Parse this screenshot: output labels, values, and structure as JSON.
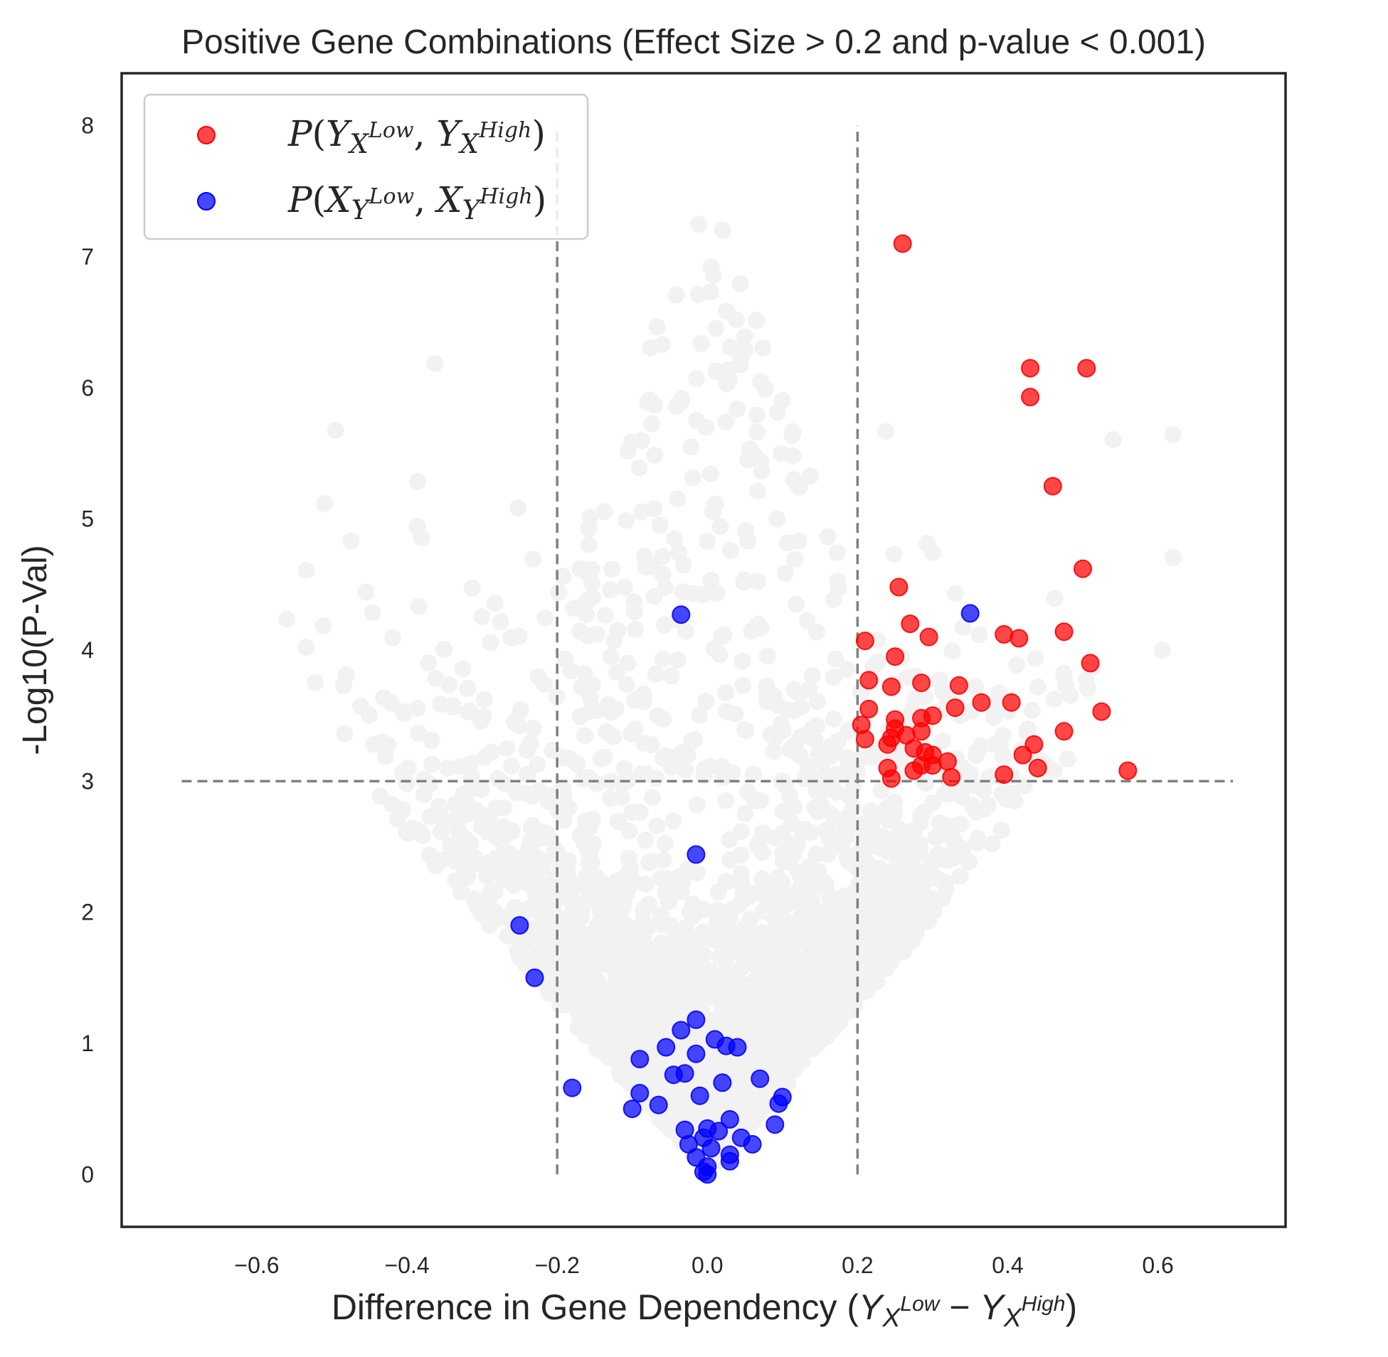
{
  "chart_data": {
    "type": "scatter",
    "title": "Positive Gene Combinations (Effect Size > 0.2 and p-value < 0.001)",
    "xlabel": "Difference in Gene Dependency  (Y_{X^{Low}} − Y_{X^{High}})",
    "ylabel": "-Log10(P-Val)",
    "xlim": [
      -0.78,
      0.77
    ],
    "ylim": [
      -0.4,
      8.4
    ],
    "xticks": [
      "−0.6",
      "−0.4",
      "−0.2",
      "0.0",
      "0.2",
      "0.4",
      "0.6"
    ],
    "xtick_values": [
      -0.6,
      -0.4,
      -0.2,
      0.0,
      0.2,
      0.4,
      0.6
    ],
    "yticks": [
      "0",
      "1",
      "2",
      "3",
      "4",
      "5",
      "6",
      "7",
      "8"
    ],
    "ytick_values": [
      0,
      1,
      2,
      3,
      4,
      5,
      6,
      7,
      8
    ],
    "grid": false,
    "legend": {
      "placement": "top-left"
    },
    "threshold_lines": {
      "vertical_x": [
        -0.2,
        0.2
      ],
      "vertical_y_range": [
        0,
        8
      ],
      "horizontal_y": 3,
      "horizontal_x_range": [
        -0.7,
        0.7
      ],
      "style": "dashed",
      "color": "#808080"
    },
    "background_color": "#f2f2f2",
    "series": [
      {
        "name": "P(Y_{X^{Low}}, Y_{X^{High}})",
        "color": "#ff0000",
        "points": [
          [
            0.26,
            7.1
          ],
          [
            0.43,
            6.15
          ],
          [
            0.505,
            6.15
          ],
          [
            0.43,
            5.93
          ],
          [
            0.46,
            5.25
          ],
          [
            0.5,
            4.62
          ],
          [
            0.255,
            4.48
          ],
          [
            0.27,
            4.2
          ],
          [
            0.21,
            4.07
          ],
          [
            0.295,
            4.1
          ],
          [
            0.395,
            4.12
          ],
          [
            0.415,
            4.09
          ],
          [
            0.475,
            4.14
          ],
          [
            0.51,
            3.9
          ],
          [
            0.25,
            3.95
          ],
          [
            0.215,
            3.77
          ],
          [
            0.245,
            3.72
          ],
          [
            0.285,
            3.75
          ],
          [
            0.335,
            3.73
          ],
          [
            0.365,
            3.6
          ],
          [
            0.405,
            3.6
          ],
          [
            0.525,
            3.53
          ],
          [
            0.215,
            3.55
          ],
          [
            0.25,
            3.47
          ],
          [
            0.285,
            3.48
          ],
          [
            0.3,
            3.5
          ],
          [
            0.33,
            3.56
          ],
          [
            0.205,
            3.43
          ],
          [
            0.25,
            3.4
          ],
          [
            0.265,
            3.35
          ],
          [
            0.285,
            3.38
          ],
          [
            0.245,
            3.33
          ],
          [
            0.24,
            3.28
          ],
          [
            0.275,
            3.25
          ],
          [
            0.29,
            3.22
          ],
          [
            0.3,
            3.2
          ],
          [
            0.21,
            3.32
          ],
          [
            0.475,
            3.38
          ],
          [
            0.435,
            3.28
          ],
          [
            0.42,
            3.2
          ],
          [
            0.24,
            3.1
          ],
          [
            0.275,
            3.08
          ],
          [
            0.3,
            3.12
          ],
          [
            0.32,
            3.15
          ],
          [
            0.395,
            3.05
          ],
          [
            0.44,
            3.1
          ],
          [
            0.56,
            3.08
          ],
          [
            0.245,
            3.02
          ],
          [
            0.325,
            3.03
          ],
          [
            0.285,
            3.12
          ]
        ]
      },
      {
        "name": "P(X_{Y^{Low}}, X_{Y^{High}})",
        "color": "#0000ff",
        "points": [
          [
            -0.035,
            4.27
          ],
          [
            0.35,
            4.28
          ],
          [
            -0.015,
            2.44
          ],
          [
            -0.25,
            1.9
          ],
          [
            -0.23,
            1.5
          ],
          [
            -0.015,
            1.18
          ],
          [
            -0.035,
            1.1
          ],
          [
            -0.055,
            0.97
          ],
          [
            -0.09,
            0.88
          ],
          [
            -0.015,
            0.92
          ],
          [
            0.01,
            1.03
          ],
          [
            0.025,
            0.98
          ],
          [
            0.04,
            0.97
          ],
          [
            -0.045,
            0.76
          ],
          [
            -0.03,
            0.77
          ],
          [
            0.02,
            0.7
          ],
          [
            0.07,
            0.73
          ],
          [
            -0.18,
            0.66
          ],
          [
            -0.09,
            0.62
          ],
          [
            -0.065,
            0.53
          ],
          [
            -0.1,
            0.5
          ],
          [
            -0.01,
            0.6
          ],
          [
            0.1,
            0.59
          ],
          [
            0.095,
            0.54
          ],
          [
            0.03,
            0.42
          ],
          [
            0.09,
            0.38
          ],
          [
            -0.03,
            0.34
          ],
          [
            0.0,
            0.35
          ],
          [
            0.015,
            0.33
          ],
          [
            -0.005,
            0.28
          ],
          [
            0.045,
            0.28
          ],
          [
            0.06,
            0.23
          ],
          [
            -0.025,
            0.23
          ],
          [
            0.005,
            0.2
          ],
          [
            0.03,
            0.15
          ],
          [
            -0.015,
            0.13
          ],
          [
            0.03,
            0.1
          ],
          [
            0.0,
            0.06
          ],
          [
            -0.005,
            0.02
          ],
          [
            0.0,
            0.0
          ]
        ]
      }
    ]
  }
}
